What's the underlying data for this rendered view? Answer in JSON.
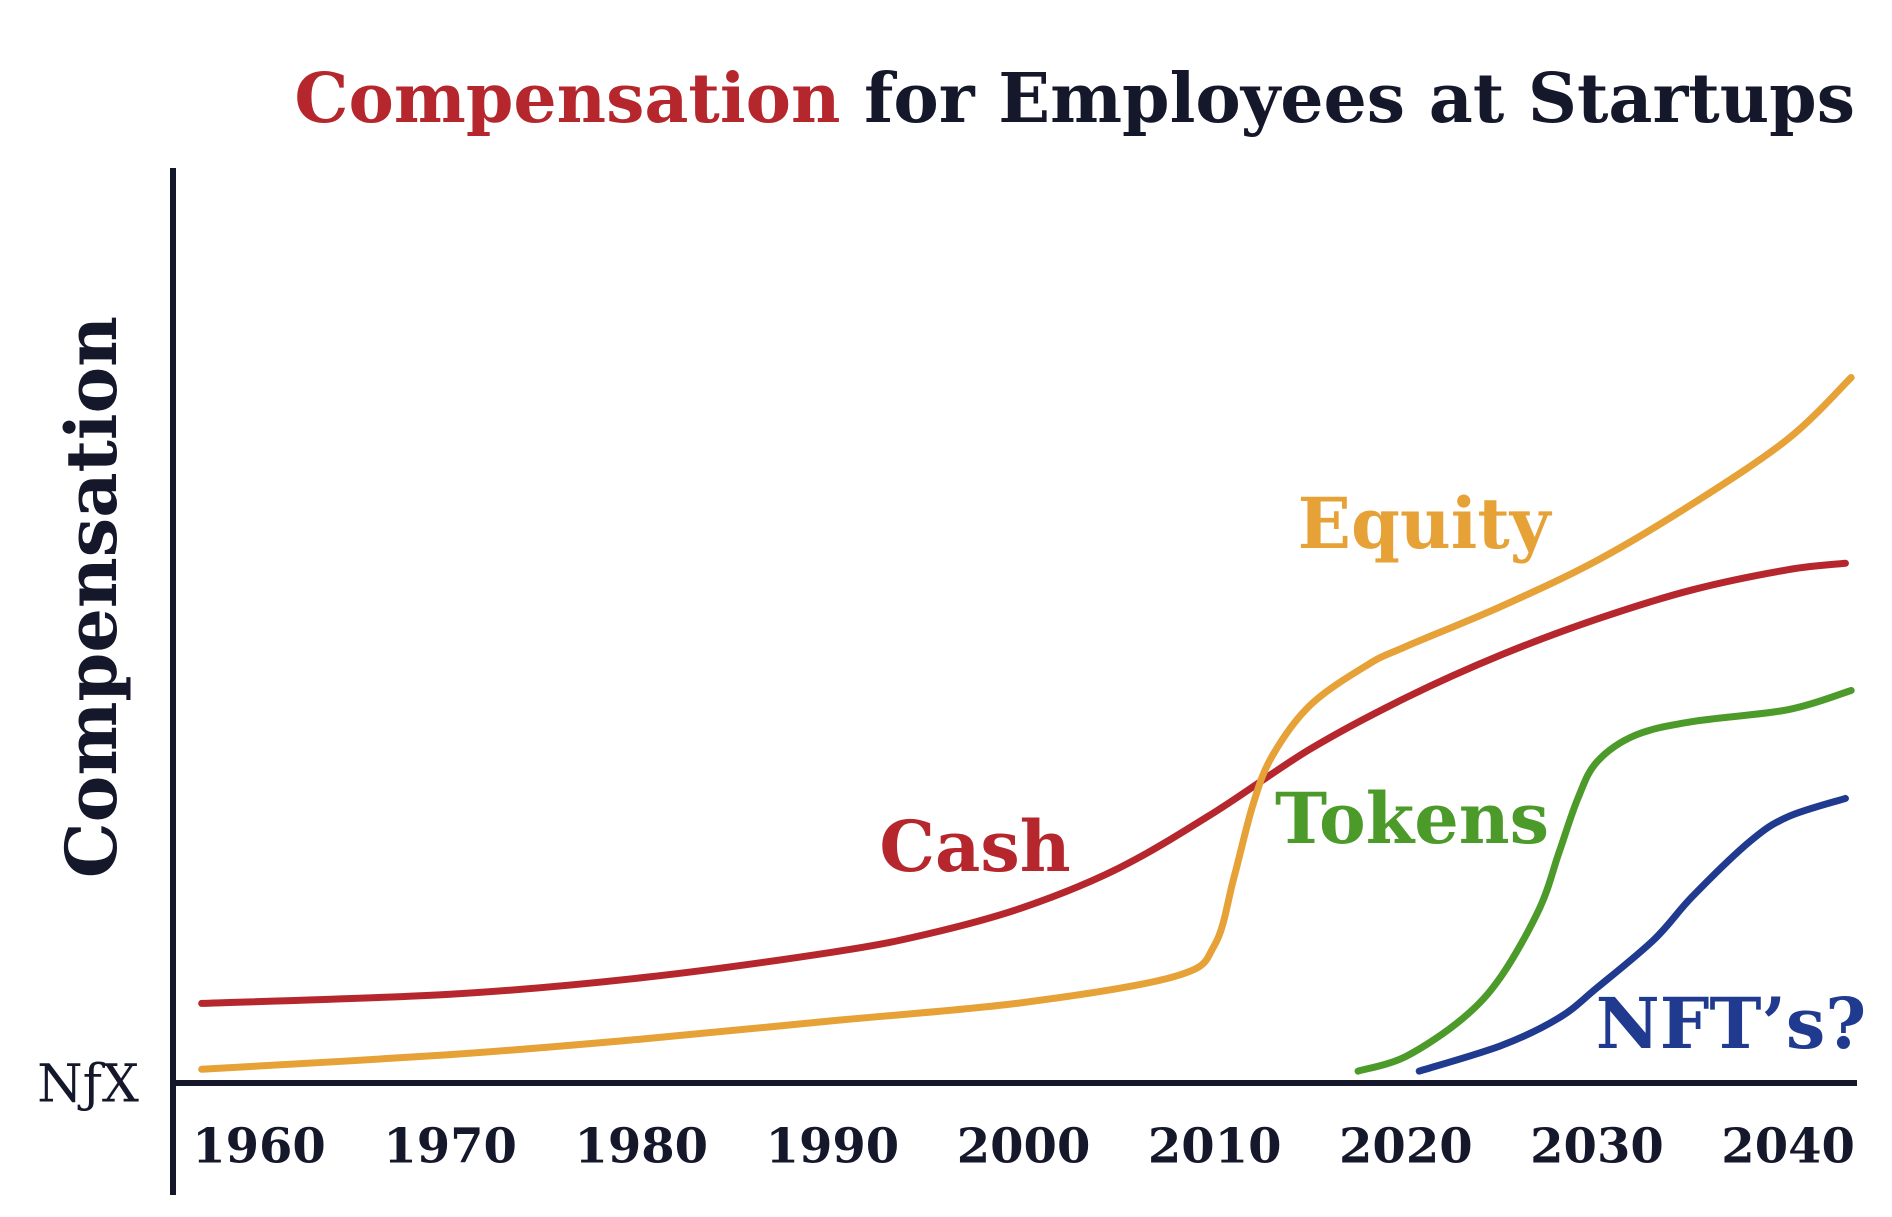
{
  "chart_data": {
    "type": "line",
    "title": [
      "Compensation",
      "for Employees at Startups"
    ],
    "title_colors": [
      "#b5272d",
      "#15172b"
    ],
    "y_label": "Compensation",
    "logo": "NƒX",
    "xlim": [
      1955.5,
      2043.5
    ],
    "xticks": [
      1960,
      1970,
      1980,
      1990,
      2000,
      2010,
      2020,
      2030,
      2040
    ],
    "ylim": [
      0,
      100
    ],
    "series": [
      {
        "name": "Cash",
        "color": "#b5272d",
        "x": [
          1957,
          1970,
          1980,
          1990,
          1995,
          2000,
          2005,
          2010,
          2015,
          2020,
          2025,
          2030,
          2035,
          2040,
          2043
        ],
        "values": [
          8.7,
          9.7,
          11.5,
          14.3,
          16.3,
          19.2,
          23.5,
          29.6,
          36.5,
          42.1,
          46.8,
          50.7,
          53.9,
          56.1,
          56.8
        ]
      },
      {
        "name": "Equity",
        "color": "#e6a137",
        "x": [
          1957,
          1970,
          1980,
          1990,
          2000,
          2008,
          2010,
          2011,
          2012,
          2013,
          2015,
          2018,
          2020,
          2025,
          2030,
          2035,
          2040,
          2043.3
        ],
        "values": [
          1.5,
          3.1,
          4.8,
          6.8,
          8.8,
          11.7,
          15.1,
          22.4,
          30.4,
          35.7,
          41.3,
          45.7,
          47.7,
          52.1,
          57.1,
          63.3,
          70.4,
          77.1
        ]
      },
      {
        "name": "Tokens",
        "color": "#4c9a2a",
        "x": [
          2017.5,
          2020,
          2023,
          2025,
          2027,
          2028,
          2029,
          2030,
          2032,
          2035,
          2040,
          2043.3
        ],
        "values": [
          1.3,
          2.9,
          7.1,
          11.7,
          19.1,
          25.1,
          31.1,
          35.1,
          38.0,
          39.5,
          40.8,
          42.9
        ]
      },
      {
        "name": "NFT’s?",
        "color": "#1f3a8f",
        "x": [
          2020.7,
          2025,
          2028,
          2030,
          2033,
          2035,
          2038,
          2040,
          2043
        ],
        "values": [
          1.3,
          4.1,
          7.1,
          10.4,
          15.7,
          20.4,
          26.4,
          29.1,
          31.1
        ]
      }
    ]
  }
}
